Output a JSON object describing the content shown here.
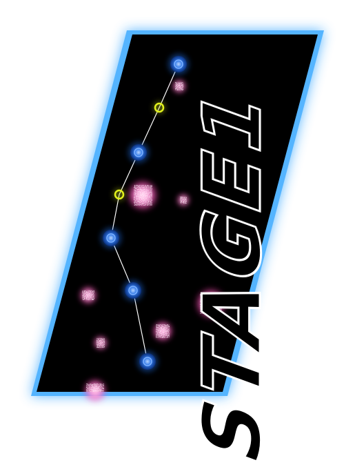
{
  "stage": {
    "title": "STAGE1"
  },
  "colors": {
    "frame_glow": "#54b4ff",
    "panel": "#000000",
    "title_fill": "#000000",
    "node": "#1d66d6",
    "node_ring": "#7fb2ff",
    "waypoint": "#e2f21c",
    "enemy": "#ff2ea6",
    "path": "#ffffff"
  },
  "icons": {
    "node": "blue-orbit-node-icon",
    "waypoint": "yellow-ring-icon",
    "enemy": "pink-spark-cube-icon"
  }
}
